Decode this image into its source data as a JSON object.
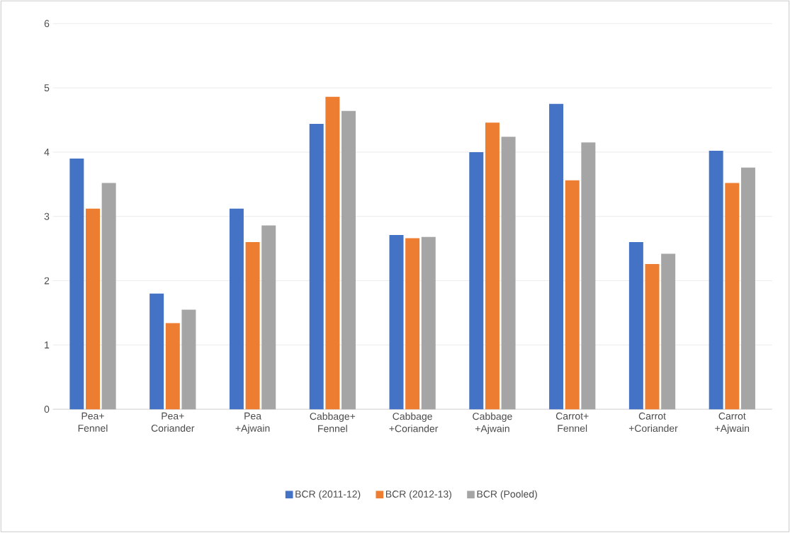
{
  "chart_data": {
    "type": "bar",
    "categories": [
      "Pea+ Fennel",
      "Pea+ Coriander",
      "Pea +Ajwain",
      "Cabbage+ Fennel",
      "Cabbage +Coriander",
      "Cabbage +Ajwain",
      "Carrot+ Fennel",
      "Carrot +Coriander",
      "Carrot +Ajwain"
    ],
    "series": [
      {
        "name": "BCR (2011-12)",
        "color": "#4472c4",
        "values": [
          3.9,
          1.8,
          3.12,
          4.44,
          2.71,
          4.0,
          4.75,
          2.6,
          4.02
        ]
      },
      {
        "name": "BCR (2012-13)",
        "color": "#ed7d31",
        "values": [
          3.12,
          1.34,
          2.6,
          4.86,
          2.66,
          4.46,
          3.56,
          2.26,
          3.52
        ]
      },
      {
        "name": "BCR (Pooled)",
        "color": "#a5a5a5",
        "values": [
          3.52,
          1.55,
          2.86,
          4.64,
          2.68,
          4.24,
          4.15,
          2.42,
          3.76
        ]
      }
    ],
    "ylim": [
      0,
      6
    ],
    "yticks": [
      0,
      1,
      2,
      3,
      4,
      5,
      6
    ],
    "grid": "y",
    "legend": "bottom"
  }
}
